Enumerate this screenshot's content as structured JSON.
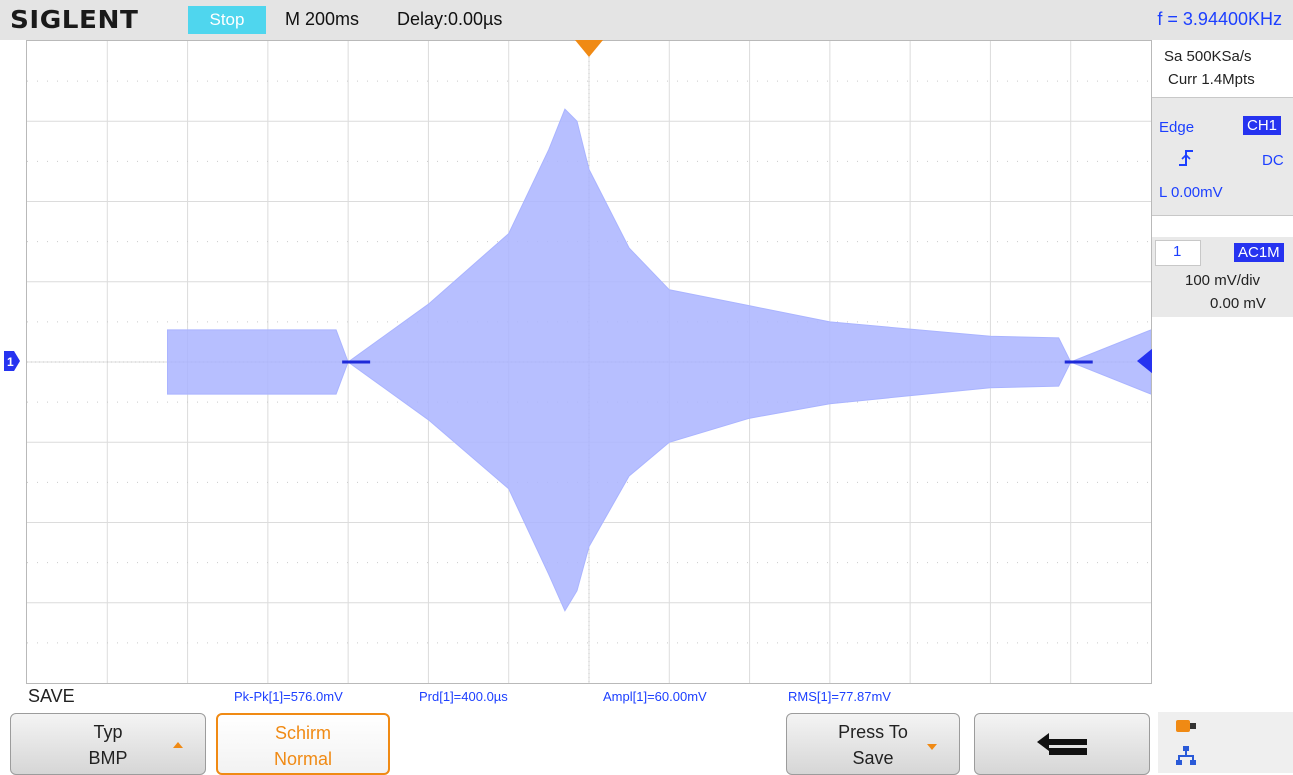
{
  "header": {
    "brand": "SIGLENT",
    "run_state": "Stop",
    "timebase": "M 200ms",
    "delay": "Delay:0.00µs",
    "frequency": "f = 3.94400KHz"
  },
  "acquisition": {
    "sample_rate": "Sa 500KSa/s",
    "memory_depth": "Curr 1.4Mpts"
  },
  "trigger": {
    "type": "Edge",
    "source": "CH1",
    "slope_icon": "rising-edge-icon",
    "coupling": "DC",
    "level": "L  0.00mV"
  },
  "channel": {
    "number": "1",
    "coupling": "AC1M",
    "scale": "100 mV/div",
    "offset": "0.00 mV"
  },
  "menu": {
    "title": "SAVE"
  },
  "measurements": [
    "Pk-Pk[1]=576.0mV",
    "Prd[1]=400.0µs",
    "Ampl[1]=60.00mV",
    "RMS[1]=77.87mV"
  ],
  "softkeys": [
    {
      "line1": "Typ",
      "line2": "BMP"
    },
    {
      "line1": "Schirm",
      "line2": "Normal"
    },
    {
      "line1": "Press To",
      "line2": "Save"
    },
    {
      "icon": "return-arrow-icon"
    }
  ],
  "status_icons": [
    "usb-storage-icon",
    "network-icon"
  ],
  "colors": {
    "trace": "#aab4ff",
    "trace_edge": "#1e2ad8",
    "accent_orange": "#f08a14",
    "stop_cyan": "#4fd6ee",
    "readout_blue": "#1c3fff"
  },
  "chart_data": {
    "type": "area",
    "title": "",
    "xlabel": "",
    "ylabel": "",
    "x_unit": "s",
    "y_unit": "mV",
    "ylim": [
      -400,
      400
    ],
    "xlim": [
      -1.4,
      1.4
    ],
    "grid": true,
    "series": [
      {
        "x": [
          -1.05,
          -0.63,
          -0.6,
          -0.4,
          -0.2,
          -0.1,
          -0.06,
          -0.03,
          0.0,
          0.1,
          0.2,
          0.4,
          0.6,
          1.0,
          1.17,
          1.2,
          1.4
        ],
        "upper": [
          40,
          40,
          0,
          72,
          160,
          265,
          315,
          300,
          240,
          142,
          90,
          70,
          50,
          32,
          30,
          0,
          40
        ],
        "lower": [
          -40,
          -40,
          0,
          -72,
          -158,
          -265,
          -310,
          -285,
          -230,
          -142,
          -100,
          -70,
          -52,
          -32,
          -30,
          0,
          -40
        ]
      }
    ]
  }
}
